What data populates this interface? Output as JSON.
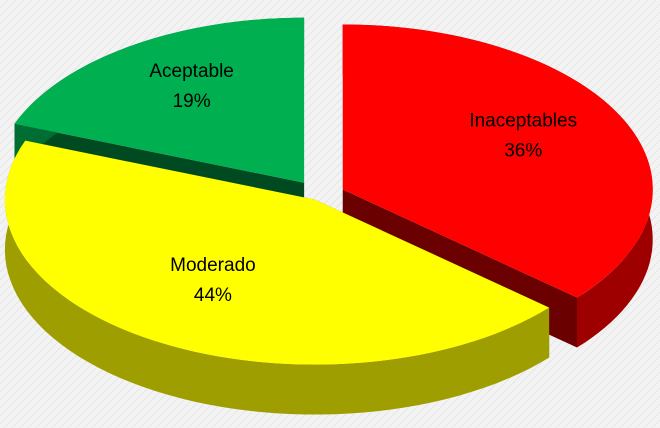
{
  "chart_data": {
    "type": "pie",
    "categories": [
      "Inaceptables",
      "Moderado",
      "Aceptable"
    ],
    "values": [
      36,
      44,
      19
    ],
    "value_labels": [
      "36%",
      "44%",
      "19%"
    ],
    "colors": [
      "#ff0000",
      "#ffff00",
      "#00b050"
    ]
  }
}
